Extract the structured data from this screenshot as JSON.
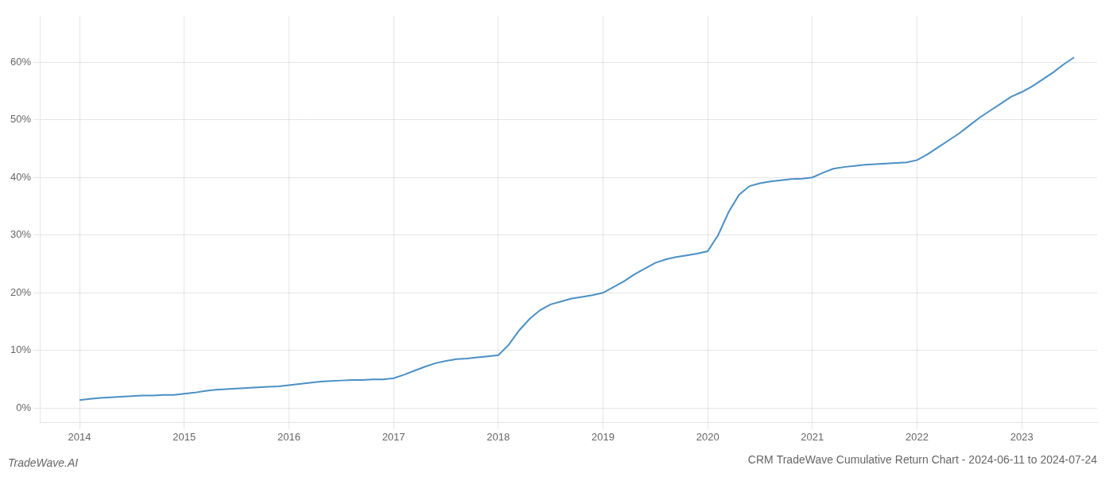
{
  "chart_data": {
    "type": "line",
    "title": "CRM TradeWave Cumulative Return Chart - 2024-06-11 to 2024-07-24",
    "annotations": [
      "TradeWave.AI"
    ],
    "color": "#4a90c4",
    "x": [
      2014.0,
      2014.1,
      2014.2,
      2014.3,
      2014.4,
      2014.5,
      2014.6,
      2014.7,
      2014.8,
      2014.9,
      2015.0,
      2015.1,
      2015.2,
      2015.3,
      2015.4,
      2015.5,
      2015.6,
      2015.7,
      2015.8,
      2015.9,
      2016.0,
      2016.1,
      2016.2,
      2016.3,
      2016.4,
      2016.5,
      2016.6,
      2016.7,
      2016.8,
      2016.9,
      2017.0,
      2017.1,
      2017.2,
      2017.3,
      2017.4,
      2017.5,
      2017.6,
      2017.7,
      2017.8,
      2017.9,
      2018.0,
      2018.1,
      2018.2,
      2018.3,
      2018.4,
      2018.5,
      2018.6,
      2018.7,
      2018.8,
      2018.9,
      2019.0,
      2019.1,
      2019.2,
      2019.3,
      2019.4,
      2019.5,
      2019.6,
      2019.7,
      2019.8,
      2019.9,
      2020.0,
      2020.1,
      2020.2,
      2020.3,
      2020.4,
      2020.5,
      2020.6,
      2020.7,
      2020.8,
      2020.9,
      2021.0,
      2021.1,
      2021.2,
      2021.3,
      2021.4,
      2021.5,
      2021.6,
      2021.7,
      2021.8,
      2021.9,
      2022.0,
      2022.1,
      2022.2,
      2022.3,
      2022.4,
      2022.5,
      2022.6,
      2022.7,
      2022.8,
      2022.9,
      2023.0,
      2023.1,
      2023.2,
      2023.3,
      2023.4,
      2023.5
    ],
    "values": [
      0.014,
      0.016,
      0.018,
      0.019,
      0.02,
      0.021,
      0.022,
      0.022,
      0.023,
      0.023,
      0.025,
      0.027,
      0.03,
      0.032,
      0.033,
      0.034,
      0.035,
      0.036,
      0.037,
      0.038,
      0.04,
      0.042,
      0.044,
      0.046,
      0.047,
      0.048,
      0.049,
      0.049,
      0.05,
      0.05,
      0.052,
      0.058,
      0.065,
      0.072,
      0.078,
      0.082,
      0.085,
      0.086,
      0.088,
      0.09,
      0.092,
      0.11,
      0.135,
      0.155,
      0.17,
      0.18,
      0.185,
      0.19,
      0.193,
      0.196,
      0.2,
      0.21,
      0.22,
      0.232,
      0.242,
      0.252,
      0.258,
      0.262,
      0.265,
      0.268,
      0.272,
      0.3,
      0.34,
      0.37,
      0.385,
      0.39,
      0.393,
      0.395,
      0.397,
      0.398,
      0.4,
      0.408,
      0.415,
      0.418,
      0.42,
      0.422,
      0.423,
      0.424,
      0.425,
      0.426,
      0.43,
      0.44,
      0.452,
      0.464,
      0.476,
      0.49,
      0.504,
      0.516,
      0.528,
      0.54,
      0.548,
      0.558,
      0.57,
      0.582,
      0.596,
      0.608
    ],
    "xlim": [
      2013.62,
      2023.72
    ],
    "ylim": [
      -0.025,
      0.68
    ],
    "xticks": [
      2014,
      2015,
      2016,
      2017,
      2018,
      2019,
      2020,
      2021,
      2022,
      2023
    ],
    "yticks": [
      {
        "value": 0.0,
        "label": "0%"
      },
      {
        "value": 0.1,
        "label": "10%"
      },
      {
        "value": 0.2,
        "label": "20%"
      },
      {
        "value": 0.3,
        "label": "30%"
      },
      {
        "value": 0.4,
        "label": "40%"
      },
      {
        "value": 0.5,
        "label": "50%"
      },
      {
        "value": 0.6,
        "label": "60%"
      }
    ],
    "grid": true
  }
}
